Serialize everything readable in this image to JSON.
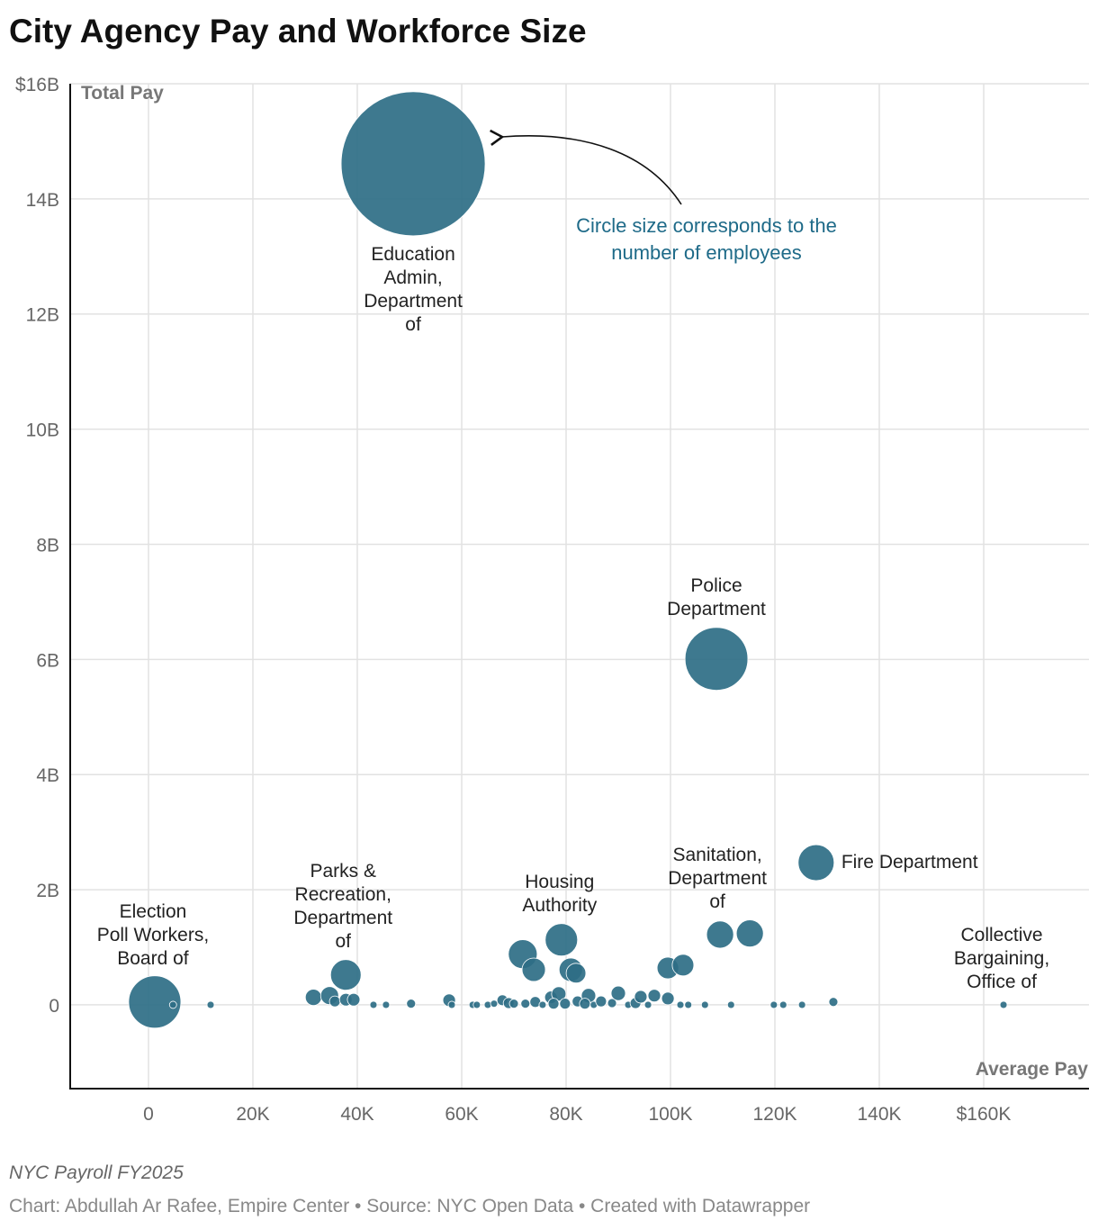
{
  "chart_data": {
    "type": "bubble",
    "title": "City Agency Pay and Workforce Size",
    "subtitle": "NYC Payroll FY2025",
    "source": "Chart: Abdullah Ar Rafee, Empire Center • Source: NYC Open Data • Created with Datawrapper",
    "annotation": "Circle size corresponds to the\nnumber of employees",
    "x_label": "Average Pay",
    "y_label": "Total Pay",
    "color": "#2e6e85",
    "grid": true,
    "xlim": [
      -15000,
      180000
    ],
    "xticks": [
      0,
      {
        "value": 20000,
        "label": "20K"
      },
      {
        "value": 40000,
        "label": "40K"
      },
      {
        "value": 60000,
        "label": "60K"
      },
      {
        "value": 80000,
        "label": "80K"
      },
      {
        "value": 100000,
        "label": "100K"
      },
      {
        "value": 120000,
        "label": "120K"
      },
      {
        "value": 140000,
        "label": "140K"
      },
      {
        "value": 160000,
        "label": "$160K"
      }
    ],
    "ylim": [
      -1.44,
      16
    ],
    "yticks": [
      0,
      {
        "value": 2,
        "label": "2B"
      },
      {
        "value": 4,
        "label": "4B"
      },
      {
        "value": 6,
        "label": "6B"
      },
      {
        "value": 8,
        "label": "8B"
      },
      {
        "value": 10,
        "label": "10B"
      },
      {
        "value": 12,
        "label": "12B"
      },
      {
        "value": 14,
        "label": "14B"
      },
      {
        "value": 16,
        "label": "$16B"
      }
    ],
    "labels": [
      "Education\nAdmin,\nDepartment\nof",
      "Police\nDepartment",
      "Fire Department",
      "Election\nPoll Workers,\nBoard of",
      "Parks &\nRecreation,\nDepartment\nof",
      "Housing\nAuthority",
      "Sanitation,\nDepartment\nof",
      "Collective\nBargaining,\nOffice of",
      null,
      null,
      null,
      null,
      null,
      null,
      null,
      null,
      null,
      null,
      null,
      null,
      null,
      null,
      null,
      null,
      null,
      null,
      null,
      null,
      null,
      null,
      null,
      null,
      null,
      null,
      null,
      null,
      null,
      null,
      null,
      null,
      null,
      null,
      null,
      null,
      null,
      null,
      null,
      null,
      null,
      null,
      null,
      null,
      null,
      null,
      null,
      null,
      null,
      null,
      null,
      null,
      null,
      null
    ],
    "x": [
      50700,
      108800,
      127900,
      1200,
      37800,
      79100,
      109500,
      163800,
      115200,
      71700,
      73800,
      80900,
      81900,
      99500,
      102400,
      31600,
      34700,
      35700,
      37800,
      39300,
      43100,
      45500,
      50300,
      57600,
      58100,
      62100,
      62900,
      65000,
      66200,
      67800,
      69000,
      70000,
      72200,
      74100,
      75500,
      77100,
      78600,
      77600,
      79800,
      82200,
      84300,
      83600,
      85300,
      86700,
      88800,
      90000,
      91900,
      93300,
      94300,
      95700,
      96900,
      99500,
      101900,
      103400,
      106600,
      111600,
      119800,
      121600,
      125200,
      131200,
      4700,
      11900
    ],
    "y": [
      14.61,
      6.01,
      2.47,
      0.05,
      0.52,
      1.13,
      1.22,
      0,
      1.24,
      0.88,
      0.61,
      0.61,
      0.55,
      0.64,
      0.69,
      0.13,
      0.16,
      0.06,
      0.09,
      0.09,
      0,
      0,
      0.02,
      0.08,
      0,
      0,
      0,
      0,
      0.02,
      0.08,
      0.03,
      0.02,
      0.02,
      0.05,
      0,
      0.13,
      0.19,
      0.02,
      0.02,
      0.06,
      0.16,
      0.02,
      0,
      0.06,
      0.03,
      0.2,
      0,
      0.03,
      0.14,
      0,
      0.16,
      0.11,
      0,
      0,
      0,
      0,
      0,
      0,
      0,
      0.05,
      0,
      0
    ],
    "size": [
      289000,
      55000,
      18000,
      38000,
      13000,
      14600,
      10200,
      720,
      10200,
      11600,
      7600,
      7600,
      5400,
      6500,
      6500,
      3660,
      4520,
      1630,
      2210,
      2210,
      720,
      720,
      1130,
      2210,
      720,
      720,
      720,
      720,
      720,
      1630,
      1630,
      1130,
      1130,
      1630,
      720,
      2210,
      2890,
      1630,
      1630,
      1630,
      2890,
      1630,
      720,
      1630,
      1130,
      2890,
      720,
      1630,
      2210,
      720,
      2210,
      2210,
      720,
      720,
      720,
      720,
      720,
      720,
      720,
      1130,
      720,
      720
    ]
  }
}
